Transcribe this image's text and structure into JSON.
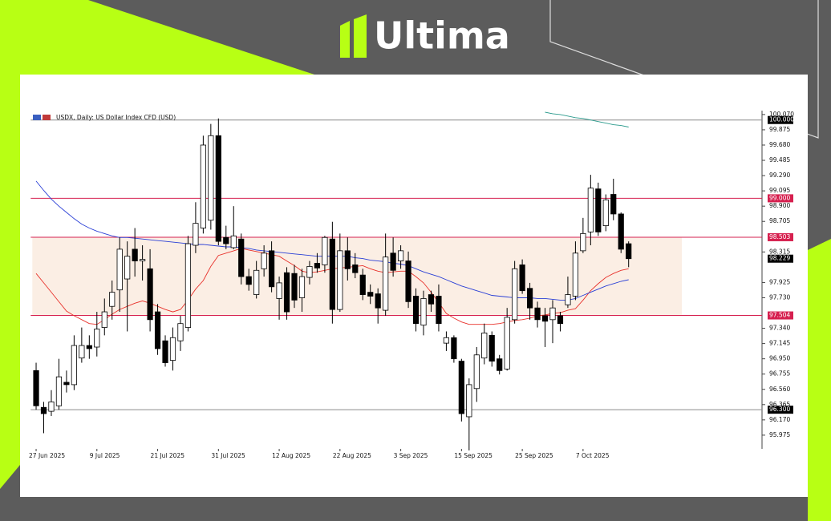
{
  "brand": "Ultima",
  "chart_data": {
    "type": "candlestick",
    "title": "USDX, Daily: US Dollar Index CFD (USD)",
    "categories": [
      "27 Jun 2025",
      null,
      null,
      null,
      null,
      null,
      null,
      null,
      "9 Jul 2025",
      null,
      null,
      null,
      null,
      null,
      null,
      null,
      "21 Jul 2025",
      null,
      null,
      null,
      null,
      null,
      null,
      null,
      "31 Jul 2025",
      null,
      null,
      null,
      null,
      null,
      null,
      null,
      "12 Aug 2025",
      null,
      null,
      null,
      null,
      null,
      null,
      null,
      "22 Aug 2025",
      null,
      null,
      null,
      null,
      null,
      null,
      null,
      "3 Sep 2025",
      null,
      null,
      null,
      null,
      null,
      null,
      null,
      "15 Sep 2025",
      null,
      null,
      null,
      null,
      null,
      null,
      null,
      "25 Sep 2025",
      null,
      null,
      null,
      null,
      null,
      null,
      null,
      "7 Oct 2025",
      null,
      null,
      null,
      null,
      null,
      null
    ],
    "open": [
      96.8,
      96.33,
      96.28,
      96.35,
      96.65,
      96.62,
      96.96,
      97.12,
      97.1,
      97.35,
      97.62,
      97.83,
      97.97,
      98.35,
      98.2,
      98.1,
      97.55,
      97.18,
      96.93,
      97.18,
      97.35,
      98.4,
      98.62,
      98.72,
      99.8,
      98.5,
      98.37,
      98.48,
      98.0,
      97.77,
      98.1,
      98.33,
      97.72,
      98.05,
      98.04,
      97.73,
      97.99,
      98.17,
      98.15,
      98.48,
      97.58,
      98.33,
      98.15,
      98.02,
      97.8,
      97.78,
      97.57,
      98.3,
      98.2,
      98.2,
      97.75,
      97.38,
      97.77,
      97.75,
      97.15,
      97.22,
      96.92,
      96.21,
      96.57,
      96.96,
      97.25,
      96.95,
      96.82,
      97.45,
      98.15,
      97.85,
      97.6,
      97.5,
      97.45,
      97.5,
      97.64,
      97.75,
      98.33,
      98.57,
      99.12,
      98.65,
      99.05,
      98.8,
      98.42
    ],
    "high": [
      96.9,
      96.4,
      96.55,
      96.95,
      96.8,
      97.25,
      97.35,
      97.25,
      97.55,
      97.72,
      97.95,
      98.5,
      98.45,
      98.62,
      98.4,
      98.35,
      97.65,
      97.25,
      97.35,
      97.5,
      98.52,
      98.95,
      99.8,
      99.95,
      100.02,
      98.65,
      98.9,
      98.55,
      98.1,
      98.2,
      98.4,
      98.45,
      98.0,
      98.12,
      98.15,
      98.1,
      98.2,
      98.3,
      98.52,
      98.7,
      98.55,
      98.5,
      98.3,
      98.1,
      97.9,
      97.85,
      98.55,
      98.5,
      98.4,
      98.32,
      97.85,
      97.82,
      97.82,
      97.9,
      97.3,
      97.25,
      96.95,
      96.7,
      97.1,
      97.4,
      97.3,
      97.0,
      97.6,
      98.2,
      98.22,
      97.92,
      97.68,
      97.6,
      97.7,
      97.55,
      98.0,
      98.45,
      98.75,
      99.3,
      99.2,
      99.05,
      99.25,
      98.82,
      98.45
    ],
    "low": [
      96.3,
      96.0,
      96.22,
      96.3,
      96.52,
      96.55,
      96.9,
      96.95,
      96.98,
      97.25,
      97.45,
      97.55,
      97.3,
      98.0,
      97.95,
      97.3,
      97.0,
      96.85,
      96.8,
      97.05,
      97.3,
      98.3,
      98.55,
      98.6,
      98.4,
      98.35,
      98.35,
      97.9,
      97.82,
      97.72,
      98.0,
      97.8,
      97.45,
      97.45,
      97.6,
      97.55,
      97.9,
      98.05,
      98.05,
      97.4,
      97.55,
      97.95,
      97.98,
      97.7,
      97.65,
      97.4,
      97.5,
      98.0,
      98.1,
      97.6,
      97.3,
      97.25,
      97.55,
      97.3,
      97.05,
      96.9,
      96.15,
      95.78,
      96.4,
      96.88,
      96.85,
      96.75,
      96.8,
      97.4,
      97.78,
      97.45,
      97.35,
      97.1,
      97.15,
      97.3,
      97.6,
      97.7,
      98.3,
      98.4,
      98.52,
      98.58,
      98.72,
      98.3,
      98.12
    ],
    "close": [
      96.35,
      96.25,
      96.4,
      96.72,
      96.62,
      97.12,
      97.12,
      97.08,
      97.33,
      97.55,
      97.8,
      98.35,
      98.26,
      98.2,
      98.22,
      97.45,
      97.08,
      96.9,
      97.22,
      97.4,
      98.42,
      98.68,
      99.68,
      99.8,
      98.45,
      98.42,
      98.52,
      98.0,
      97.9,
      98.08,
      98.3,
      97.87,
      97.92,
      97.55,
      97.7,
      98.0,
      98.13,
      98.11,
      98.5,
      97.58,
      98.33,
      98.1,
      98.05,
      97.77,
      97.75,
      97.6,
      98.25,
      98.08,
      98.33,
      97.68,
      97.4,
      97.72,
      97.65,
      97.4,
      97.22,
      96.95,
      96.25,
      96.62,
      97.0,
      97.28,
      96.92,
      96.8,
      97.48,
      98.1,
      97.82,
      97.6,
      97.45,
      97.43,
      97.6,
      97.4,
      97.77,
      98.3,
      98.55,
      99.13,
      98.57,
      98.98,
      98.8,
      98.35,
      98.229
    ],
    "up_color": "#ffffff",
    "down_color": "#000000",
    "moving_averages": [
      {
        "color": "#e8322c",
        "values": [
          98.04,
          97.92,
          97.8,
          97.68,
          97.56,
          97.5,
          97.45,
          97.4,
          97.39,
          97.45,
          97.52,
          97.58,
          97.62,
          97.66,
          97.69,
          97.66,
          97.62,
          97.58,
          97.55,
          97.58,
          97.7,
          97.84,
          97.95,
          98.13,
          98.27,
          98.3,
          98.33,
          98.36,
          98.34,
          98.32,
          98.3,
          98.28,
          98.26,
          98.2,
          98.14,
          98.07,
          98.05,
          98.06,
          98.08,
          98.1,
          98.11,
          98.12,
          98.13,
          98.14,
          98.1,
          98.07,
          98.05,
          98.06,
          98.07,
          98.07,
          98.0,
          97.92,
          97.8,
          97.67,
          97.53,
          97.47,
          97.42,
          97.39,
          97.39,
          97.39,
          97.39,
          97.4,
          97.42,
          97.44,
          97.45,
          97.47,
          97.5,
          97.51,
          97.53,
          97.54,
          97.57,
          97.59,
          97.7,
          97.82,
          97.91,
          97.99,
          98.04,
          98.08,
          98.1
        ]
      },
      {
        "color": "#2a3fd6",
        "values": [
          99.22,
          99.1,
          98.99,
          98.9,
          98.82,
          98.74,
          98.67,
          98.62,
          98.58,
          98.55,
          98.52,
          98.5,
          98.5,
          98.49,
          98.48,
          98.47,
          98.46,
          98.45,
          98.44,
          98.43,
          98.42,
          98.41,
          98.41,
          98.4,
          98.39,
          98.38,
          98.38,
          98.37,
          98.36,
          98.34,
          98.33,
          98.32,
          98.31,
          98.3,
          98.29,
          98.28,
          98.27,
          98.26,
          98.26,
          98.26,
          98.26,
          98.26,
          98.24,
          98.23,
          98.21,
          98.2,
          98.19,
          98.17,
          98.16,
          98.14,
          98.1,
          98.06,
          98.03,
          98.0,
          97.96,
          97.92,
          97.88,
          97.85,
          97.82,
          97.79,
          97.76,
          97.75,
          97.74,
          97.73,
          97.73,
          97.73,
          97.72,
          97.72,
          97.71,
          97.7,
          97.7,
          97.72,
          97.76,
          97.8,
          97.84,
          97.88,
          97.91,
          97.94,
          97.96
        ]
      },
      {
        "color": "#2a9a8c",
        "values": [
          null,
          null,
          null,
          null,
          null,
          null,
          null,
          null,
          null,
          null,
          null,
          null,
          null,
          null,
          null,
          null,
          null,
          null,
          null,
          null,
          null,
          null,
          null,
          null,
          null,
          null,
          null,
          null,
          null,
          null,
          null,
          null,
          null,
          null,
          null,
          null,
          null,
          null,
          null,
          null,
          null,
          null,
          null,
          null,
          null,
          null,
          null,
          null,
          null,
          null,
          null,
          null,
          null,
          null,
          null,
          null,
          null,
          null,
          null,
          null,
          null,
          null,
          null,
          null,
          null,
          null,
          null,
          100.1,
          100.08,
          100.07,
          100.05,
          100.03,
          100.02,
          100.0,
          99.98,
          99.96,
          99.94,
          99.93,
          99.91
        ]
      }
    ],
    "levels": [
      {
        "value": 100.0,
        "label": "100.000",
        "color": "#8a8a8a",
        "label_color": "#000000"
      },
      {
        "value": 99.0,
        "label": "99.000",
        "color": "#d6204f",
        "label_color": "#d6204f"
      },
      {
        "value": 98.503,
        "label": "98.503",
        "color": "#d6204f",
        "label_color": "#d6204f"
      },
      {
        "value": 97.504,
        "label": "97.504",
        "color": "#d6204f",
        "label_color": "#d6204f"
      },
      {
        "value": 96.3,
        "label": "96.300",
        "color": "#8a8a8a",
        "label_color": "#000000"
      }
    ],
    "last_price": {
      "value": 98.229,
      "label": "98.229",
      "color": "#000000"
    },
    "zone": {
      "low": 97.504,
      "high": 98.503,
      "color": "#fbeee4"
    },
    "ylim": [
      95.8,
      100.12
    ],
    "yticks": [
      {
        "value": 100.07,
        "label": "100.070"
      },
      99.875,
      {
        "value": 99.68,
        "label": "99.680"
      },
      99.485,
      {
        "value": 99.29,
        "label": "99.290"
      },
      99.095,
      {
        "value": 98.9,
        "label": "98.900"
      },
      98.705,
      98.315,
      97.925,
      {
        "value": 97.73,
        "label": "97.730"
      },
      {
        "value": 97.34,
        "label": "97.340"
      },
      97.145,
      {
        "value": 96.95,
        "label": "96.950"
      },
      96.755,
      {
        "value": 96.56,
        "label": "96.560"
      },
      96.365,
      {
        "value": 96.17,
        "label": "96.170"
      },
      95.975
    ]
  }
}
